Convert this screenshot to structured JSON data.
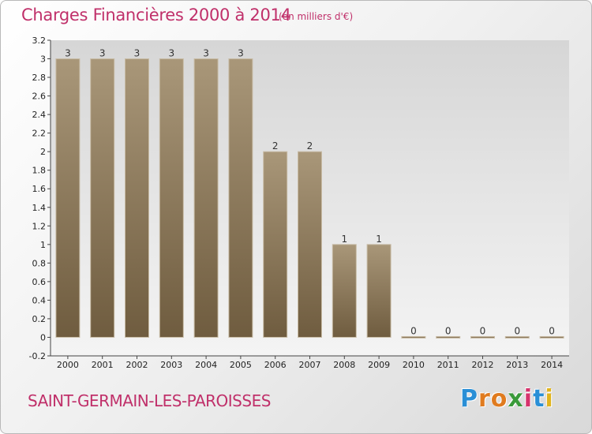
{
  "header": {
    "title": "Charges Financières 2000 à 2014",
    "unit_note": "(en milliers d'€)"
  },
  "footer": {
    "commune": "SAINT-GERMAIN-LES-PAROISSES",
    "brand": "Proxiti",
    "brand_letters": [
      "P",
      "r",
      "o",
      "x",
      "i",
      "t",
      "i"
    ],
    "brand_colors": [
      "#2a8fd6",
      "#e07b1f",
      "#e07b1f",
      "#3a9a3a",
      "#d6336c",
      "#2a8fd6",
      "#e0b41f"
    ]
  },
  "chart_data": {
    "type": "bar",
    "title": "Charges Financières 2000 à 2014",
    "subtitle": "(en milliers d'€)",
    "xlabel": "",
    "ylabel": "",
    "categories": [
      "2000",
      "2001",
      "2002",
      "2003",
      "2004",
      "2005",
      "2006",
      "2007",
      "2008",
      "2009",
      "2010",
      "2011",
      "2012",
      "2013",
      "2014"
    ],
    "values": [
      3,
      3,
      3,
      3,
      3,
      3,
      2,
      2,
      1,
      1,
      0,
      0,
      0,
      0,
      0
    ],
    "data_labels": [
      "3",
      "3",
      "3",
      "3",
      "3",
      "3",
      "2",
      "2",
      "1",
      "1",
      "0",
      "0",
      "0",
      "0",
      "0"
    ],
    "ylim": [
      -0.2,
      3.2
    ],
    "yticks": [
      -0.2,
      0,
      0.2,
      0.4,
      0.6,
      0.8,
      1,
      1.2,
      1.4,
      1.6,
      1.8,
      2,
      2.2,
      2.4,
      2.6,
      2.8,
      3,
      3.2
    ],
    "ytick_labels": [
      "-0.2",
      "0",
      "0.2",
      "0.4",
      "0.6",
      "0.8",
      "1",
      "1.2",
      "1.4",
      "1.6",
      "1.8",
      "2",
      "2.2",
      "2.4",
      "2.6",
      "2.8",
      "3",
      "3.2"
    ],
    "grid": false,
    "colors": {
      "bar_top": "#a99779",
      "bar_bottom": "#6f5c3f",
      "bar_edge": "#c8bca6",
      "plot_bg_top": "#d6d6d6",
      "plot_bg_bottom": "#f4f4f4"
    }
  }
}
